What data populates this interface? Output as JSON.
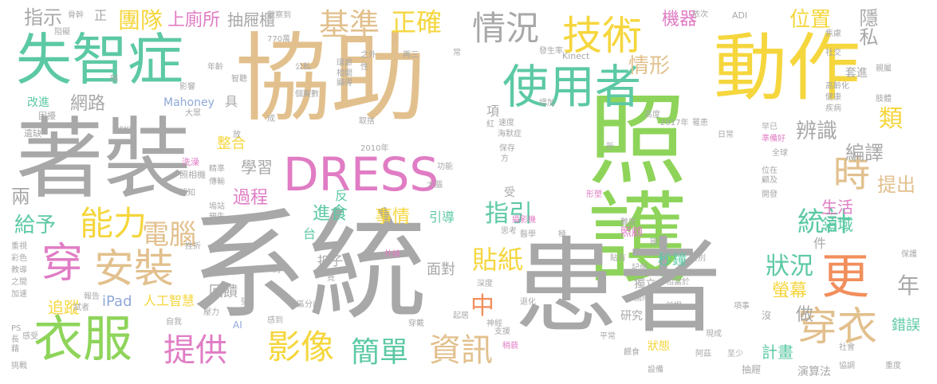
{
  "palette": {
    "gray": "#a8a8a8",
    "tan": "#e2c08d",
    "green": "#8ed45a",
    "teal": "#5cc9a4",
    "yellow": "#f5d63d",
    "orange": "#f28e5c",
    "pink": "#e07cc4",
    "blue": "#8fa8d8",
    "lightgreen": "#b8dc82"
  },
  "words": [
    {
      "text": "照護",
      "color": "green"
    },
    {
      "text": "系統",
      "color": "gray"
    },
    {
      "text": "協助",
      "color": "tan"
    },
    {
      "text": "患者",
      "color": "gray"
    },
    {
      "text": "著裝",
      "color": "gray"
    },
    {
      "text": "動作",
      "color": "yellow"
    },
    {
      "text": "失智症",
      "color": "teal"
    },
    {
      "text": "DRESS",
      "color": "pink"
    },
    {
      "text": "使用者",
      "color": "teal"
    },
    {
      "text": "技術",
      "color": "yellow"
    },
    {
      "text": "衣服",
      "color": "green"
    },
    {
      "text": "穿衣",
      "color": "tan"
    },
    {
      "text": "更",
      "color": "orange"
    },
    {
      "text": "安裝",
      "color": "tan"
    },
    {
      "text": "穿",
      "color": "pink"
    },
    {
      "text": "時",
      "color": "tan"
    },
    {
      "text": "影像",
      "color": "yellow"
    },
    {
      "text": "能力",
      "color": "yellow"
    },
    {
      "text": "提供",
      "color": "pink"
    },
    {
      "text": "資訊",
      "color": "tan"
    },
    {
      "text": "簡單",
      "color": "teal"
    },
    {
      "text": "基準",
      "color": "tan"
    },
    {
      "text": "正確",
      "color": "yellow"
    },
    {
      "text": "情況",
      "color": "gray"
    },
    {
      "text": "狀況",
      "color": "teal"
    },
    {
      "text": "統計",
      "color": "teal"
    },
    {
      "text": "中",
      "color": "orange"
    },
    {
      "text": "貼紙",
      "color": "yellow"
    },
    {
      "text": "指引",
      "color": "teal"
    },
    {
      "text": "辨識",
      "color": "gray"
    },
    {
      "text": "類",
      "color": "yellow"
    },
    {
      "text": "編譯",
      "color": "gray"
    },
    {
      "text": "提出",
      "color": "tan"
    },
    {
      "text": "年",
      "color": "gray"
    },
    {
      "text": "團隊",
      "color": "yellow"
    },
    {
      "text": "上廁所",
      "color": "pink"
    },
    {
      "text": "抽屜櫃",
      "color": "gray"
    },
    {
      "text": "指示",
      "color": "gray"
    },
    {
      "text": "情形",
      "color": "tan"
    },
    {
      "text": "位置",
      "color": "yellow"
    },
    {
      "text": "隱私",
      "color": "gray"
    },
    {
      "text": "機器",
      "color": "pink"
    },
    {
      "text": "網路",
      "color": "gray"
    },
    {
      "text": "電腦",
      "color": "tan"
    },
    {
      "text": "給予",
      "color": "teal"
    },
    {
      "text": "兩",
      "color": "gray"
    },
    {
      "text": "過程",
      "color": "pink"
    },
    {
      "text": "事情",
      "color": "yellow"
    },
    {
      "text": "進食",
      "color": "teal"
    },
    {
      "text": "學習",
      "color": "gray"
    },
    {
      "text": "生活",
      "color": "pink"
    },
    {
      "text": "領域",
      "color": "teal"
    },
    {
      "text": "螢幕",
      "color": "yellow"
    },
    {
      "text": "做",
      "color": "gray"
    },
    {
      "text": "計畫",
      "color": "teal"
    },
    {
      "text": "秒鐘",
      "color": "teal"
    },
    {
      "text": "面對",
      "color": "gray"
    },
    {
      "text": "iPad",
      "color": "blue"
    },
    {
      "text": "人工智慧",
      "color": "yellow"
    },
    {
      "text": "追蹤",
      "color": "yellow"
    },
    {
      "text": "回饋",
      "color": "gray"
    },
    {
      "text": "扣子",
      "color": "gray"
    },
    {
      "text": "整合",
      "color": "yellow"
    },
    {
      "text": "演算法",
      "color": "gray"
    },
    {
      "text": "錯誤",
      "color": "teal"
    },
    {
      "text": "狀態",
      "color": "yellow"
    },
    {
      "text": "研究",
      "color": "gray"
    },
    {
      "text": "照顧",
      "color": "pink"
    },
    {
      "text": "Mahoney",
      "color": "blue"
    },
    {
      "text": "Kinect",
      "color": "gray"
    },
    {
      "text": "ADI",
      "color": "gray"
    },
    {
      "text": "770萬",
      "color": "gray"
    },
    {
      "text": "2017年",
      "color": "gray"
    },
    {
      "text": "2010年",
      "color": "gray"
    },
    {
      "text": "改進",
      "color": "teal"
    },
    {
      "text": "困擾",
      "color": "gray"
    },
    {
      "text": "遺缺",
      "color": "gray"
    },
    {
      "text": "大眾",
      "color": "gray"
    },
    {
      "text": "捕捉",
      "color": "gray"
    },
    {
      "text": "洗澡",
      "color": "pink"
    },
    {
      "text": "照相機",
      "color": "gray"
    },
    {
      "text": "認知",
      "color": "gray"
    },
    {
      "text": "傳輸",
      "color": "gray"
    },
    {
      "text": "精準",
      "color": "gray"
    },
    {
      "text": "預先",
      "color": "gray"
    },
    {
      "text": "挫折",
      "color": "gray"
    },
    {
      "text": "健康",
      "color": "gray"
    },
    {
      "text": "高齡化",
      "color": "gray"
    },
    {
      "text": "社交",
      "color": "gray"
    },
    {
      "text": "全球",
      "color": "gray"
    },
    {
      "text": "準備好",
      "color": "pink"
    },
    {
      "text": "日常",
      "color": "gray"
    },
    {
      "text": "早已",
      "color": "gray"
    },
    {
      "text": "速度",
      "color": "gray"
    },
    {
      "text": "海默症",
      "color": "gray"
    },
    {
      "text": "增加",
      "color": "gray"
    },
    {
      "text": "高度",
      "color": "gray"
    },
    {
      "text": "發生率",
      "color": "gray"
    },
    {
      "text": "保存",
      "color": "gray"
    },
    {
      "text": "功能",
      "color": "gray"
    },
    {
      "text": "大腦",
      "color": "gray"
    },
    {
      "text": "引導",
      "color": "teal"
    },
    {
      "text": "反",
      "color": "teal"
    },
    {
      "text": "台",
      "color": "teal"
    },
    {
      "text": "受",
      "color": "gray"
    },
    {
      "text": "外線",
      "color": "pink"
    },
    {
      "text": "深度",
      "color": "gray"
    },
    {
      "text": "攝影機",
      "color": "pink"
    },
    {
      "text": "形塑",
      "color": "pink"
    },
    {
      "text": "醫學",
      "color": "gray"
    },
    {
      "text": "思考",
      "color": "gray"
    },
    {
      "text": "國家",
      "color": "gray"
    },
    {
      "text": "保護",
      "color": "gray"
    },
    {
      "text": "性別",
      "color": "gray"
    },
    {
      "text": "現成",
      "color": "gray"
    },
    {
      "text": "貼有",
      "color": "gray"
    },
    {
      "text": "記億",
      "color": "gray"
    },
    {
      "text": "相當於",
      "color": "gray"
    },
    {
      "text": "獨立",
      "color": "gray"
    },
    {
      "text": "國際",
      "color": "gray"
    },
    {
      "text": "退化",
      "color": "gray"
    },
    {
      "text": "起居",
      "color": "gray"
    },
    {
      "text": "神經",
      "color": "gray"
    },
    {
      "text": "支援",
      "color": "gray"
    },
    {
      "text": "稍藐",
      "color": "pink"
    },
    {
      "text": "穿戴",
      "color": "gray"
    },
    {
      "text": "平常",
      "color": "gray"
    },
    {
      "text": "餵食",
      "color": "gray"
    },
    {
      "text": "阿茲",
      "color": "gray"
    },
    {
      "text": "至少",
      "color": "gray"
    },
    {
      "text": "協調",
      "color": "gray"
    },
    {
      "text": "社會",
      "color": "gray"
    },
    {
      "text": "抽屜",
      "color": "gray"
    },
    {
      "text": "設備",
      "color": "gray"
    },
    {
      "text": "重度",
      "color": "gray"
    },
    {
      "text": "挑戰",
      "color": "gray"
    },
    {
      "text": "區分出",
      "color": "gray"
    },
    {
      "text": "感到",
      "color": "gray"
    },
    {
      "text": "壓力",
      "color": "gray"
    },
    {
      "text": "自我",
      "color": "gray"
    },
    {
      "text": "AI",
      "color": "blue"
    },
    {
      "text": "PS",
      "color": "gray"
    },
    {
      "text": "重視",
      "color": "gray"
    },
    {
      "text": "彩色",
      "color": "gray"
    },
    {
      "text": "教導",
      "color": "gray"
    },
    {
      "text": "之間",
      "color": "gray"
    },
    {
      "text": "加速",
      "color": "gray"
    },
    {
      "text": "報告",
      "color": "gray"
    },
    {
      "text": "試者",
      "color": "gray"
    },
    {
      "text": "感受",
      "color": "gray"
    },
    {
      "text": "長",
      "color": "gray"
    },
    {
      "text": "藉",
      "color": "gray"
    },
    {
      "text": "正",
      "color": "gray"
    },
    {
      "text": "具",
      "color": "gray"
    },
    {
      "text": "骨幹",
      "color": "gray"
    },
    {
      "text": "阻礙",
      "color": "gray"
    },
    {
      "text": "觀察到",
      "color": "gray"
    },
    {
      "text": "年齡",
      "color": "gray"
    },
    {
      "text": "影響",
      "color": "gray"
    },
    {
      "text": "智聽",
      "color": "gray"
    },
    {
      "text": "相關",
      "color": "gray"
    },
    {
      "text": "顯得",
      "color": "gray"
    },
    {
      "text": "環節",
      "color": "gray"
    },
    {
      "text": "個案數",
      "color": "gray"
    },
    {
      "text": "公私",
      "color": "gray"
    },
    {
      "text": "取捨",
      "color": "gray"
    },
    {
      "text": "依次",
      "color": "gray"
    },
    {
      "text": "焦慮",
      "color": "gray"
    },
    {
      "text": "親屬",
      "color": "gray"
    },
    {
      "text": "疾病",
      "color": "gray"
    },
    {
      "text": "罹患",
      "color": "gray"
    },
    {
      "text": "套進",
      "color": "gray"
    },
    {
      "text": "肢體",
      "color": "gray"
    },
    {
      "text": "位在",
      "color": "gray"
    },
    {
      "text": "顧及",
      "color": "gray"
    },
    {
      "text": "難度",
      "color": "gray"
    },
    {
      "text": "前提",
      "color": "gray"
    },
    {
      "text": "項事",
      "color": "gray"
    },
    {
      "text": "開發",
      "color": "gray"
    },
    {
      "text": "沒",
      "color": "gray"
    },
    {
      "text": "件",
      "color": "gray"
    },
    {
      "text": "項",
      "color": "gray"
    },
    {
      "text": "紅",
      "color": "gray"
    },
    {
      "text": "成",
      "color": "gray"
    },
    {
      "text": "放",
      "color": "gray"
    },
    {
      "text": "張",
      "color": "gray"
    },
    {
      "text": "約",
      "color": "gray"
    },
    {
      "text": "竟",
      "color": "gray"
    },
    {
      "text": "方",
      "color": "gray"
    },
    {
      "text": "常",
      "color": "gray"
    },
    {
      "text": "之外",
      "color": "gray"
    },
    {
      "text": "性",
      "color": "gray"
    },
    {
      "text": "再三",
      "color": "gray"
    },
    {
      "text": "新",
      "color": "gray"
    },
    {
      "text": "瑞",
      "color": "gray"
    },
    {
      "text": "極",
      "color": "gray"
    },
    {
      "text": "塢站",
      "color": "gray"
    }
  ]
}
